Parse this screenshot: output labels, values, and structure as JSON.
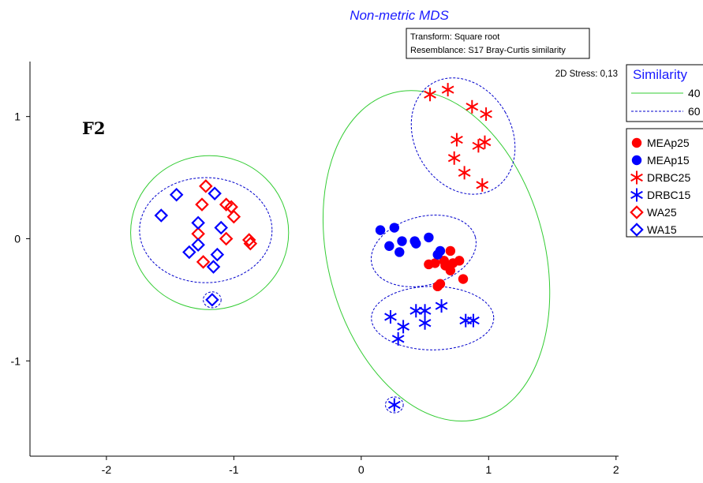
{
  "chart_data": {
    "type": "scatter",
    "title": "Non-metric MDS",
    "info_lines": [
      "Transform: Square root",
      "Resemblance: S17 Bray-Curtis similarity"
    ],
    "stress_label": "2D Stress: 0,13",
    "panel_label": "F2",
    "xlim": [
      -2.6,
      2.02
    ],
    "ylim": [
      -1.78,
      1.45
    ],
    "x_ticks": [
      -2,
      -1,
      0,
      1,
      2
    ],
    "x_tick_labels": [
      "-2",
      "-1",
      "0",
      "1",
      "2"
    ],
    "y_ticks": [
      -1,
      0,
      1
    ],
    "y_tick_labels": [
      "-1",
      "0",
      "1"
    ],
    "grid": false,
    "legend_similarity": {
      "title": "Similarity",
      "entries": [
        {
          "label": "40",
          "color": "#33cc33",
          "dashed": false
        },
        {
          "label": "60",
          "color": "#0000cc",
          "dashed": true
        }
      ]
    },
    "series": [
      {
        "name": "MEAp25",
        "marker": "circle",
        "color": "#ff0000",
        "points": [
          [
            0.53,
            -0.21
          ],
          [
            0.58,
            -0.2
          ],
          [
            0.65,
            -0.18
          ],
          [
            0.7,
            -0.1
          ],
          [
            0.72,
            -0.2
          ],
          [
            0.77,
            -0.18
          ],
          [
            0.62,
            -0.37
          ],
          [
            0.6,
            -0.39
          ],
          [
            0.8,
            -0.33
          ],
          [
            0.7,
            -0.26
          ],
          [
            0.66,
            -0.22
          ]
        ]
      },
      {
        "name": "MEAp15",
        "marker": "circle",
        "color": "#0000ff",
        "points": [
          [
            0.15,
            0.07
          ],
          [
            0.26,
            0.09
          ],
          [
            0.22,
            -0.06
          ],
          [
            0.32,
            -0.02
          ],
          [
            0.42,
            -0.02
          ],
          [
            0.43,
            -0.04
          ],
          [
            0.53,
            0.01
          ],
          [
            0.3,
            -0.11
          ],
          [
            0.6,
            -0.13
          ],
          [
            0.62,
            -0.1
          ]
        ]
      },
      {
        "name": "DRBC25",
        "marker": "asterisk",
        "color": "#ff0000",
        "points": [
          [
            0.54,
            1.18
          ],
          [
            0.68,
            1.22
          ],
          [
            0.87,
            1.08
          ],
          [
            0.98,
            1.02
          ],
          [
            0.75,
            0.81
          ],
          [
            0.97,
            0.79
          ],
          [
            0.92,
            0.76
          ],
          [
            0.73,
            0.66
          ],
          [
            0.81,
            0.54
          ],
          [
            0.95,
            0.44
          ]
        ]
      },
      {
        "name": "DRBC15",
        "marker": "asterisk",
        "color": "#0000ff",
        "points": [
          [
            0.23,
            -0.64
          ],
          [
            0.43,
            -0.59
          ],
          [
            0.5,
            -0.59
          ],
          [
            0.63,
            -0.55
          ],
          [
            0.33,
            -0.72
          ],
          [
            0.5,
            -0.69
          ],
          [
            0.82,
            -0.67
          ],
          [
            0.88,
            -0.67
          ],
          [
            0.29,
            -0.82
          ],
          [
            0.26,
            -1.36
          ]
        ]
      },
      {
        "name": "WA25",
        "marker": "diamond",
        "color": "#ff0000",
        "points": [
          [
            -1.22,
            0.43
          ],
          [
            -1.06,
            0.28
          ],
          [
            -1.02,
            0.26
          ],
          [
            -1.25,
            0.28
          ],
          [
            -1.0,
            0.18
          ],
          [
            -1.28,
            0.04
          ],
          [
            -1.06,
            0.0
          ],
          [
            -0.88,
            -0.01
          ],
          [
            -0.87,
            -0.04
          ],
          [
            -1.24,
            -0.19
          ]
        ]
      },
      {
        "name": "WA15",
        "marker": "diamond",
        "color": "#0000ff",
        "points": [
          [
            -1.45,
            0.36
          ],
          [
            -1.15,
            0.37
          ],
          [
            -1.57,
            0.19
          ],
          [
            -1.28,
            0.13
          ],
          [
            -1.1,
            0.09
          ],
          [
            -1.28,
            -0.05
          ],
          [
            -1.13,
            -0.13
          ],
          [
            -1.35,
            -0.11
          ],
          [
            -1.16,
            -0.23
          ],
          [
            -1.17,
            -0.5
          ]
        ]
      }
    ],
    "ellipses": [
      {
        "level": "40",
        "cx": -1.19,
        "cy": 0.05,
        "rx": 0.62,
        "ry": 0.63,
        "rot": 0
      },
      {
        "level": "60",
        "cx": -1.22,
        "cy": 0.07,
        "rx": 0.52,
        "ry": 0.43,
        "rot": 0
      },
      {
        "level": "60",
        "cx": -1.17,
        "cy": -0.5,
        "rx": 0.07,
        "ry": 0.065,
        "rot": 0
      },
      {
        "level": "40",
        "cx": 0.59,
        "cy": -0.14,
        "rx": 0.85,
        "ry": 1.38,
        "rot": -15
      },
      {
        "level": "60",
        "cx": 0.8,
        "cy": 0.84,
        "rx": 0.38,
        "ry": 0.5,
        "rot": -30
      },
      {
        "level": "60",
        "cx": 0.49,
        "cy": -0.1,
        "rx": 0.42,
        "ry": 0.28,
        "rot": -15
      },
      {
        "level": "60",
        "cx": 0.56,
        "cy": -0.65,
        "rx": 0.48,
        "ry": 0.26,
        "rot": 0
      },
      {
        "level": "60",
        "cx": 0.26,
        "cy": -1.36,
        "rx": 0.07,
        "ry": 0.065,
        "rot": 0
      }
    ]
  }
}
